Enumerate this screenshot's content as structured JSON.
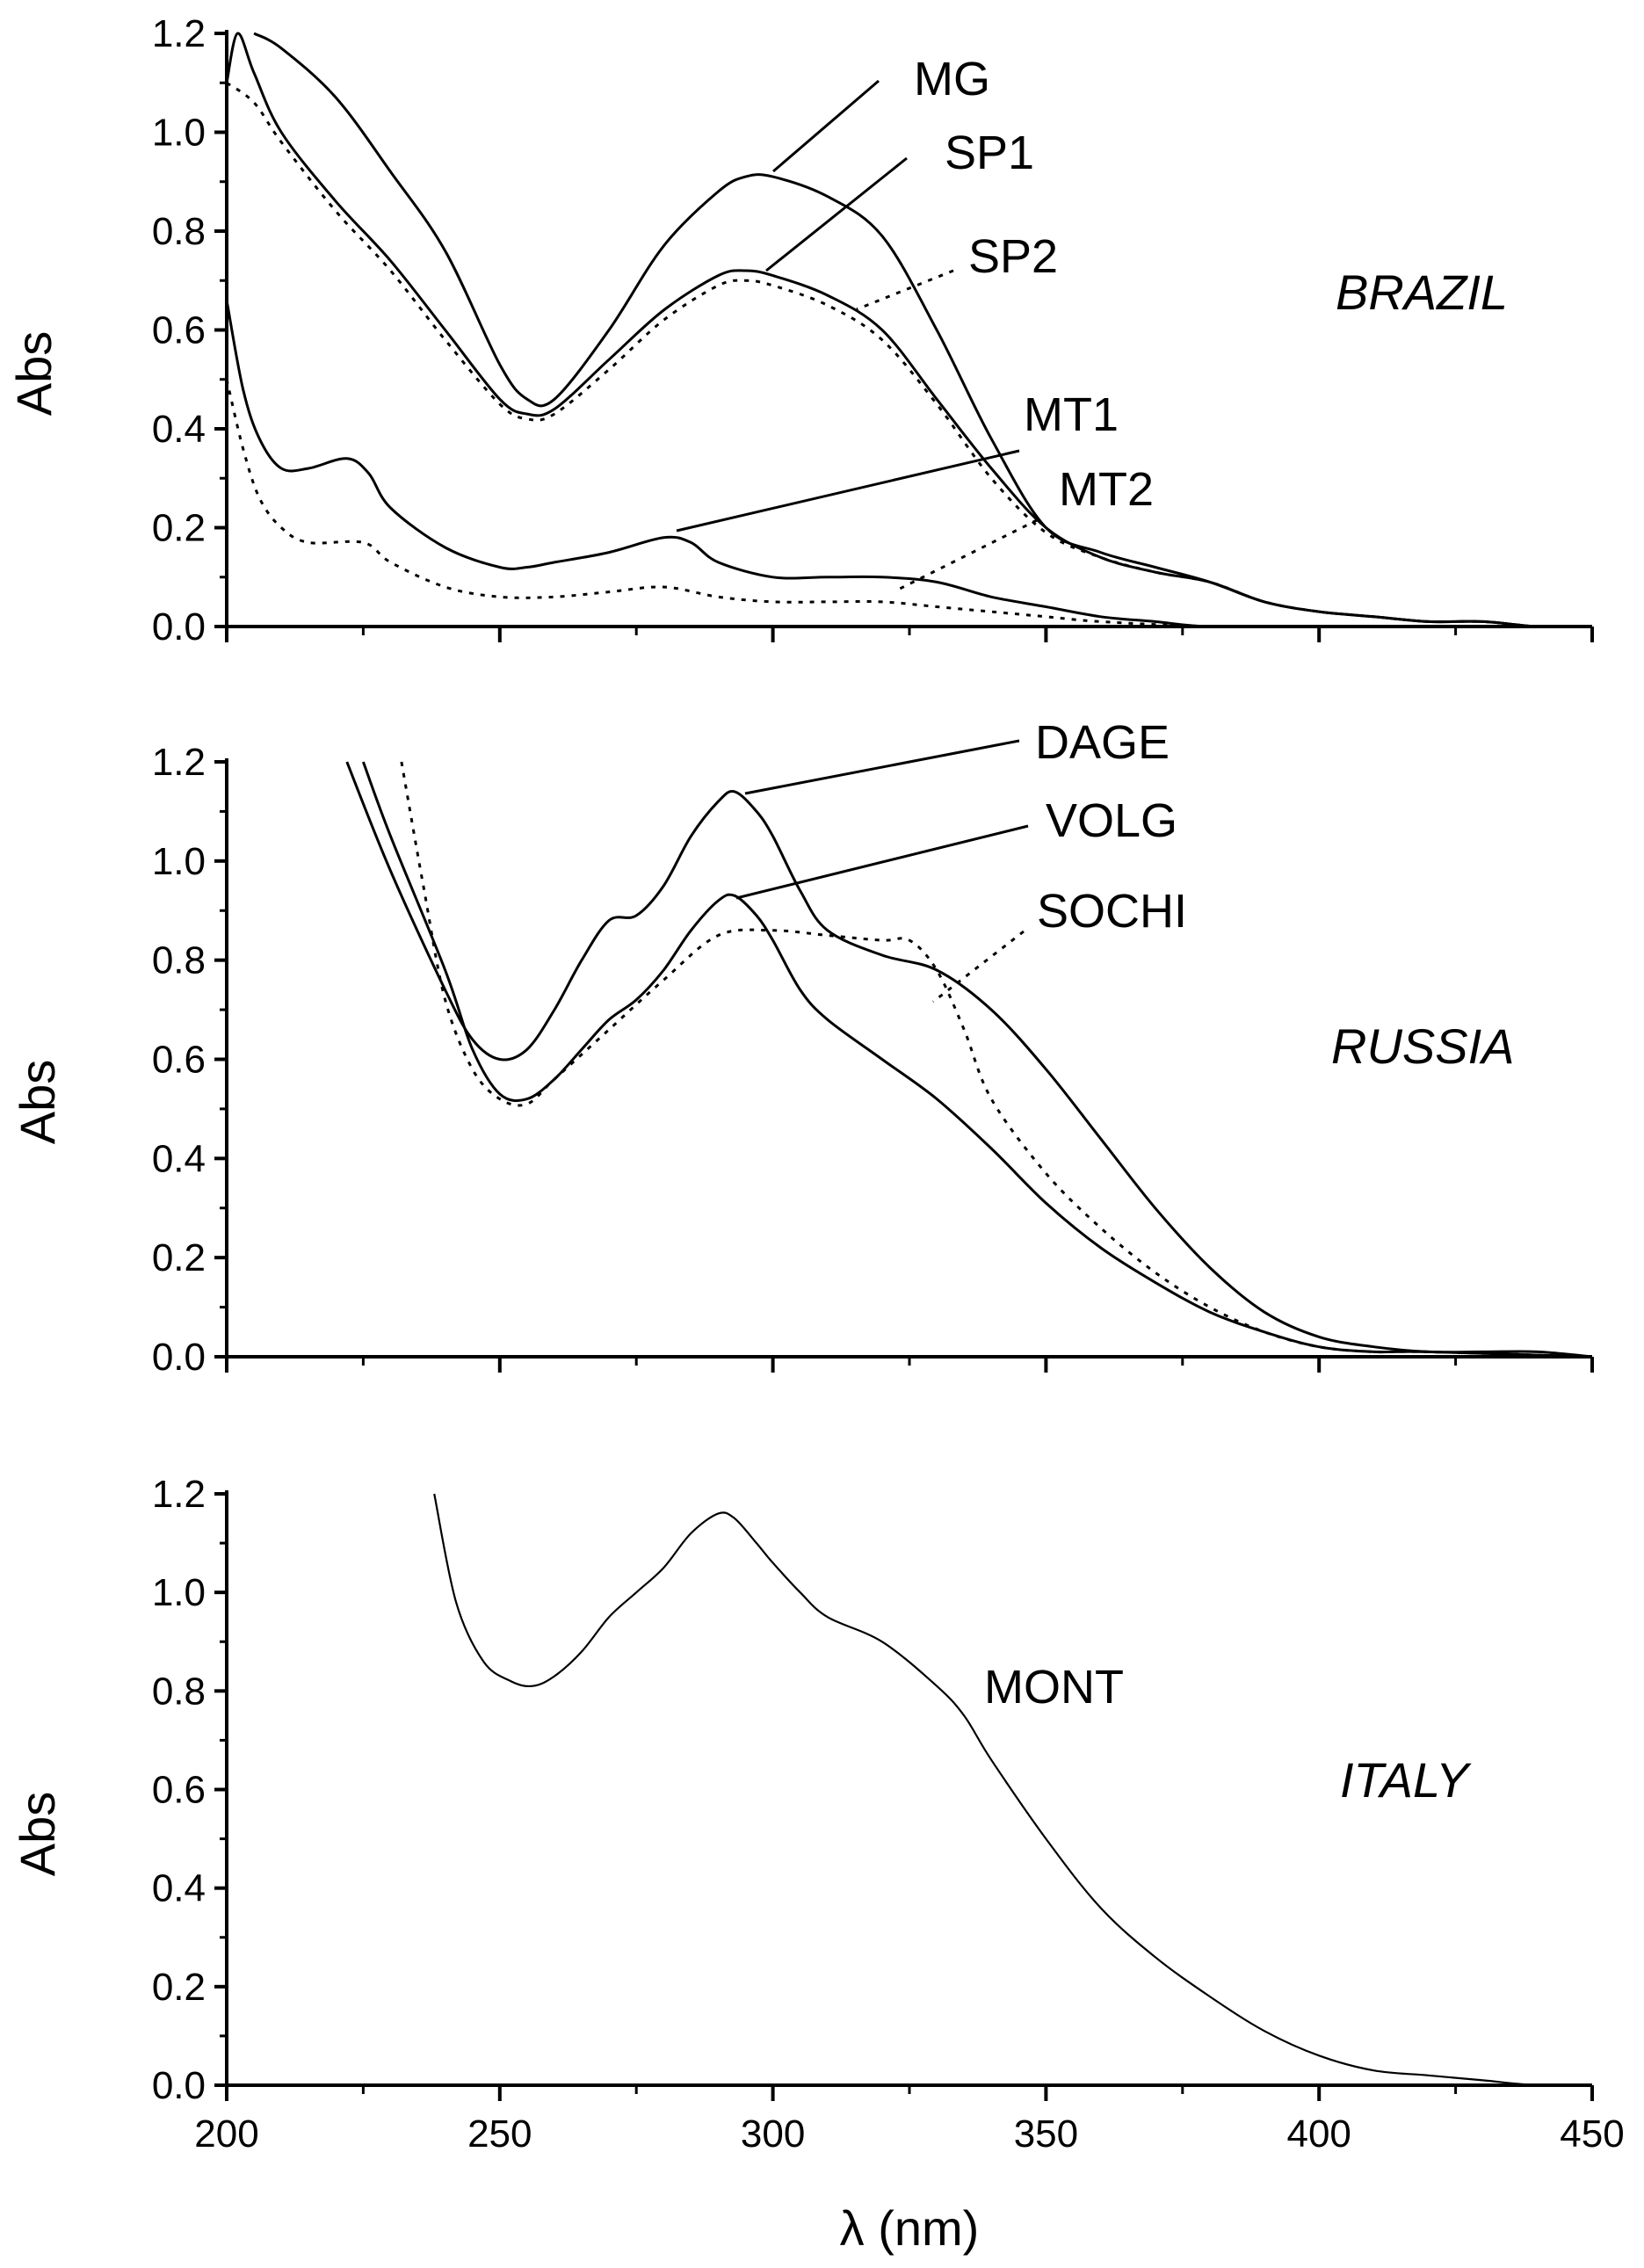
{
  "chart_data": [
    {
      "type": "line",
      "panel_label": "BRAZIL",
      "ylabel": "Abs",
      "xlabel": "",
      "xlim": [
        200,
        450
      ],
      "ylim": [
        0,
        1.2
      ],
      "yticks": [
        "0.0",
        "0.2",
        "0.4",
        "0.6",
        "0.8",
        "1.0",
        "1.2"
      ],
      "xticks": [
        "200",
        "250",
        "300",
        "350",
        "400",
        "450"
      ],
      "series": [
        {
          "name": "MG",
          "style": "solid",
          "x": [
            205,
            210,
            220,
            230,
            240,
            250,
            255,
            260,
            270,
            280,
            290,
            295,
            300,
            310,
            320,
            330,
            340,
            350,
            360,
            370,
            380,
            390,
            400,
            410,
            420,
            430,
            440,
            450
          ],
          "y": [
            1.2,
            1.17,
            1.07,
            0.92,
            0.76,
            0.53,
            0.46,
            0.46,
            0.6,
            0.77,
            0.88,
            0.91,
            0.91,
            0.87,
            0.79,
            0.6,
            0.38,
            0.2,
            0.15,
            0.12,
            0.09,
            0.05,
            0.03,
            0.02,
            0.01,
            0.01,
            0.0,
            0.0
          ]
        },
        {
          "name": "SP1",
          "style": "solid",
          "x": [
            200,
            202,
            205,
            210,
            220,
            230,
            240,
            250,
            255,
            260,
            270,
            280,
            290,
            295,
            300,
            310,
            320,
            330,
            340,
            350,
            360,
            370,
            380,
            390,
            400,
            410,
            420,
            430,
            440,
            450
          ],
          "y": [
            1.1,
            1.2,
            1.12,
            1.0,
            0.86,
            0.74,
            0.6,
            0.46,
            0.43,
            0.44,
            0.54,
            0.64,
            0.71,
            0.72,
            0.71,
            0.67,
            0.6,
            0.46,
            0.32,
            0.2,
            0.14,
            0.11,
            0.09,
            0.05,
            0.03,
            0.02,
            0.01,
            0.01,
            0.0,
            0.0
          ]
        },
        {
          "name": "SP2",
          "style": "dotted",
          "x": [
            200,
            205,
            210,
            220,
            230,
            240,
            250,
            255,
            260,
            270,
            280,
            290,
            295,
            300,
            310,
            320,
            330,
            340,
            350,
            360,
            370,
            380,
            390,
            400,
            410,
            420,
            430,
            440,
            450
          ],
          "y": [
            1.1,
            1.06,
            0.98,
            0.84,
            0.72,
            0.58,
            0.45,
            0.42,
            0.43,
            0.52,
            0.62,
            0.69,
            0.7,
            0.69,
            0.65,
            0.58,
            0.45,
            0.3,
            0.19,
            0.14,
            0.11,
            0.09,
            0.05,
            0.03,
            0.02,
            0.01,
            0.01,
            0.0,
            0.0
          ]
        },
        {
          "name": "MT1",
          "style": "solid",
          "x": [
            200,
            203,
            206,
            210,
            215,
            222,
            226,
            230,
            240,
            250,
            255,
            260,
            270,
            280,
            285,
            290,
            300,
            310,
            320,
            330,
            340,
            350,
            360,
            370,
            380,
            400,
            420,
            450
          ],
          "y": [
            0.66,
            0.48,
            0.38,
            0.32,
            0.32,
            0.34,
            0.31,
            0.24,
            0.16,
            0.12,
            0.12,
            0.13,
            0.15,
            0.18,
            0.17,
            0.13,
            0.1,
            0.1,
            0.1,
            0.09,
            0.06,
            0.04,
            0.02,
            0.01,
            0.0,
            0.0,
            0.0,
            0.0
          ]
        },
        {
          "name": "MT2",
          "style": "dotted",
          "x": [
            200,
            203,
            206,
            210,
            215,
            225,
            230,
            240,
            250,
            260,
            270,
            280,
            290,
            300,
            310,
            320,
            330,
            340,
            350,
            360,
            380,
            400,
            450
          ],
          "y": [
            0.5,
            0.36,
            0.26,
            0.2,
            0.17,
            0.17,
            0.13,
            0.08,
            0.06,
            0.06,
            0.07,
            0.08,
            0.06,
            0.05,
            0.05,
            0.05,
            0.04,
            0.03,
            0.02,
            0.01,
            0.0,
            0.0,
            0.0
          ]
        }
      ]
    },
    {
      "type": "line",
      "panel_label": "RUSSIA",
      "ylabel": "Abs",
      "xlabel": "",
      "xlim": [
        200,
        450
      ],
      "ylim": [
        0,
        1.2
      ],
      "yticks": [
        "0.0",
        "0.2",
        "0.4",
        "0.6",
        "0.8",
        "1.0",
        "1.2"
      ],
      "xticks": [
        "200",
        "250",
        "300",
        "350",
        "400",
        "450"
      ],
      "series": [
        {
          "name": "DAGE",
          "style": "solid",
          "x": [
            222,
            230,
            240,
            245,
            250,
            255,
            260,
            265,
            270,
            275,
            280,
            285,
            290,
            293,
            297,
            300,
            305,
            310,
            320,
            330,
            340,
            350,
            360,
            370,
            380,
            390,
            400,
            410,
            420,
            430,
            440,
            450
          ],
          "y": [
            1.2,
            0.98,
            0.74,
            0.64,
            0.6,
            0.62,
            0.7,
            0.8,
            0.88,
            0.89,
            0.95,
            1.05,
            1.12,
            1.14,
            1.1,
            1.05,
            0.94,
            0.86,
            0.81,
            0.78,
            0.7,
            0.58,
            0.44,
            0.3,
            0.18,
            0.09,
            0.04,
            0.02,
            0.01,
            0.01,
            0.01,
            0.0
          ]
        },
        {
          "name": "VOLG",
          "style": "solid",
          "x": [
            225,
            230,
            240,
            245,
            250,
            255,
            260,
            265,
            270,
            275,
            280,
            285,
            290,
            293,
            297,
            300,
            305,
            310,
            320,
            330,
            340,
            350,
            360,
            370,
            380,
            390,
            400,
            410,
            420,
            450
          ],
          "y": [
            1.2,
            1.05,
            0.78,
            0.62,
            0.53,
            0.52,
            0.56,
            0.62,
            0.68,
            0.72,
            0.78,
            0.86,
            0.92,
            0.93,
            0.89,
            0.84,
            0.74,
            0.68,
            0.6,
            0.52,
            0.42,
            0.31,
            0.22,
            0.15,
            0.09,
            0.05,
            0.02,
            0.01,
            0.01,
            0.0
          ]
        },
        {
          "name": "SOCHI",
          "style": "dotted",
          "x": [
            232,
            236,
            240,
            245,
            250,
            255,
            260,
            270,
            280,
            290,
            300,
            310,
            320,
            325,
            330,
            335,
            340,
            350,
            360,
            370,
            380,
            390,
            400,
            410,
            420,
            450
          ],
          "y": [
            1.2,
            0.95,
            0.72,
            0.58,
            0.52,
            0.51,
            0.56,
            0.66,
            0.76,
            0.85,
            0.86,
            0.85,
            0.84,
            0.84,
            0.78,
            0.66,
            0.52,
            0.37,
            0.26,
            0.17,
            0.1,
            0.05,
            0.02,
            0.01,
            0.01,
            0.0
          ]
        }
      ]
    },
    {
      "type": "line",
      "panel_label": "ITALY",
      "ylabel": "Abs",
      "xlabel": "λ (nm)",
      "xlim": [
        200,
        450
      ],
      "ylim": [
        0,
        1.2
      ],
      "yticks": [
        "0.0",
        "0.2",
        "0.4",
        "0.6",
        "0.8",
        "1.0",
        "1.2"
      ],
      "xticks": [
        "200",
        "250",
        "300",
        "350",
        "400",
        "450"
      ],
      "series": [
        {
          "name": "MONT",
          "style": "solid",
          "x": [
            238,
            242,
            247,
            252,
            256,
            260,
            265,
            270,
            275,
            280,
            285,
            290,
            293,
            297,
            300,
            305,
            310,
            320,
            330,
            335,
            340,
            350,
            360,
            370,
            380,
            390,
            400,
            410,
            420,
            430,
            440,
            450
          ],
          "y": [
            1.2,
            0.98,
            0.86,
            0.82,
            0.81,
            0.83,
            0.88,
            0.95,
            1.0,
            1.05,
            1.12,
            1.16,
            1.15,
            1.1,
            1.06,
            1.0,
            0.95,
            0.9,
            0.81,
            0.75,
            0.66,
            0.5,
            0.36,
            0.26,
            0.18,
            0.11,
            0.06,
            0.03,
            0.02,
            0.01,
            0.0,
            0.0
          ]
        }
      ]
    }
  ]
}
